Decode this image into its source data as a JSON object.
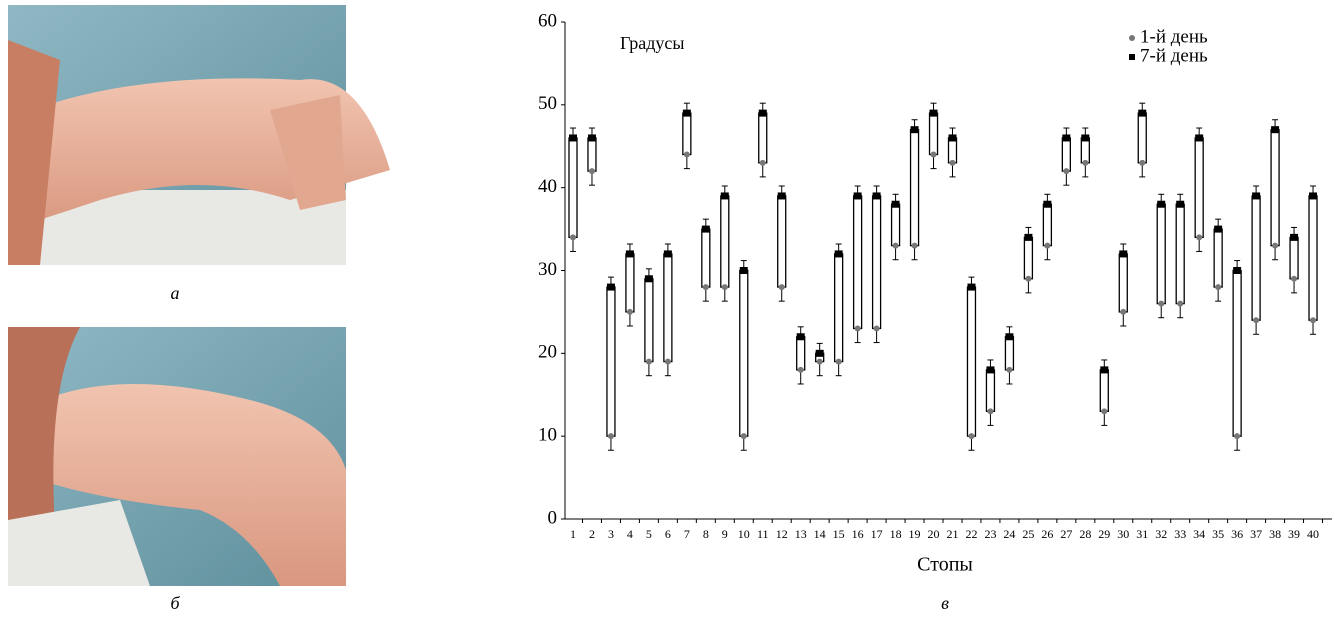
{
  "captions": {
    "a": "а",
    "b": "б",
    "c": "в"
  },
  "chart_data": {
    "type": "floating-box",
    "y_label": "Градусы",
    "x_label": "Стопы",
    "categories": [
      "1",
      "2",
      "3",
      "4",
      "5",
      "6",
      "7",
      "8",
      "9",
      "10",
      "11",
      "12",
      "13",
      "14",
      "15",
      "16",
      "17",
      "18",
      "19",
      "20",
      "21",
      "22",
      "23",
      "24",
      "25",
      "26",
      "27",
      "28",
      "29",
      "30",
      "31",
      "32",
      "33",
      "34",
      "35",
      "36",
      "37",
      "38",
      "39",
      "40"
    ],
    "series": [
      {
        "name": "1-й день",
        "color": "#777777",
        "marker": "circle",
        "values": [
          34,
          42,
          10,
          25,
          19,
          19,
          44,
          28,
          28,
          10,
          43,
          28,
          18,
          19,
          19,
          23,
          23,
          33,
          33,
          44,
          43,
          10,
          13,
          18,
          29,
          33,
          42,
          43,
          13,
          25,
          43,
          26,
          26,
          34,
          28,
          10,
          24,
          33,
          29,
          24
        ],
        "error": 1.7
      },
      {
        "name": "7-й день",
        "color": "#000000",
        "marker": "square",
        "values": [
          46,
          46,
          28,
          32,
          29,
          32,
          49,
          35,
          39,
          30,
          49,
          39,
          22,
          20,
          32,
          39,
          39,
          38,
          47,
          49,
          46,
          28,
          18,
          22,
          34,
          38,
          46,
          46,
          18,
          32,
          49,
          38,
          38,
          46,
          35,
          30,
          39,
          47,
          34,
          39
        ],
        "error": 1.2
      }
    ],
    "ylim": [
      0,
      60
    ],
    "yticks": [
      0,
      10,
      20,
      30,
      40,
      50,
      60
    ],
    "legend": "upper right"
  }
}
